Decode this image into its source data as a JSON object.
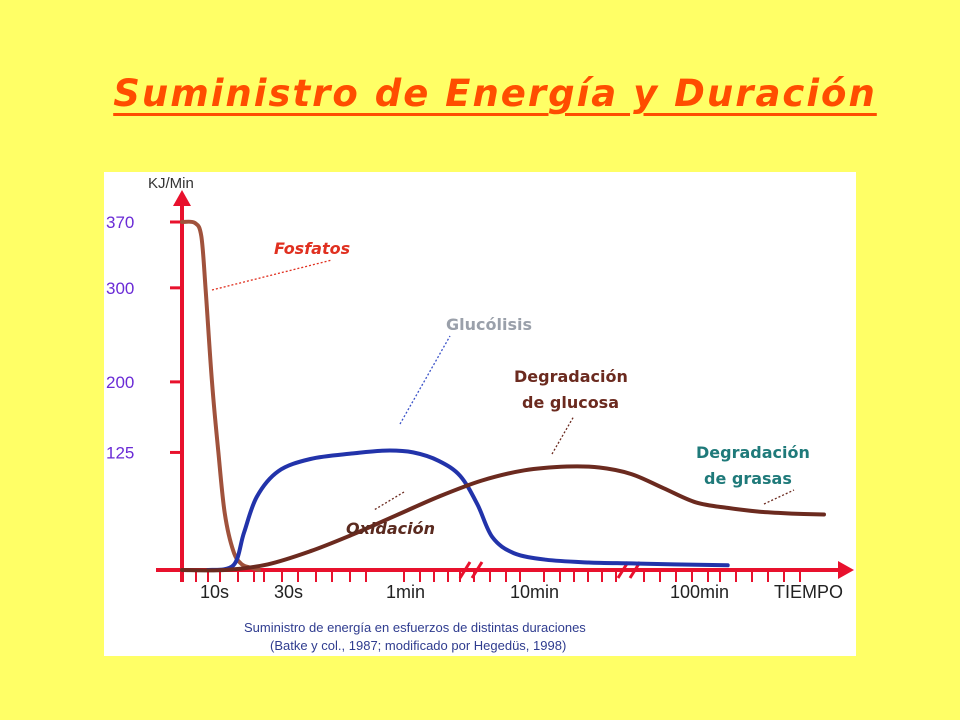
{
  "slide": {
    "title": "Suministro de Energía y Duración"
  },
  "chart_data": {
    "type": "line",
    "ylabel": "KJ/Min",
    "xlabel": "TIEMPO",
    "y_ticks": [
      125,
      200,
      300,
      370
    ],
    "ylim": [
      0,
      400
    ],
    "x_ticks": [
      "10s",
      "30s",
      "1min",
      "10min",
      "100min"
    ],
    "grid": false,
    "series": [
      {
        "name": "Fosfatos",
        "color": "#a0523c",
        "points": [
          [
            0,
            370
          ],
          [
            0.6,
            369
          ],
          [
            0.9,
            355
          ],
          [
            1.1,
            300
          ],
          [
            1.4,
            200
          ],
          [
            1.7,
            125
          ],
          [
            2.0,
            60
          ],
          [
            2.4,
            20
          ],
          [
            2.8,
            6
          ],
          [
            3.3,
            2
          ],
          [
            3.6,
            0
          ]
        ]
      },
      {
        "name": "Glucólisis",
        "color": "#2233aa",
        "points": [
          [
            1.2,
            0
          ],
          [
            2.4,
            5
          ],
          [
            2.9,
            40
          ],
          [
            3.5,
            78
          ],
          [
            4.5,
            105
          ],
          [
            6.0,
            118
          ],
          [
            8.0,
            124
          ],
          [
            9.5,
            127
          ],
          [
            10.8,
            125
          ],
          [
            12.0,
            116
          ],
          [
            13.0,
            100
          ],
          [
            13.8,
            70
          ],
          [
            14.5,
            35
          ],
          [
            15.5,
            18
          ],
          [
            17.0,
            11
          ],
          [
            19.0,
            8
          ],
          [
            21.0,
            7
          ],
          [
            23.0,
            6
          ],
          [
            25.5,
            5
          ]
        ]
      },
      {
        "name": "Oxidación",
        "color": "#6b2a1f",
        "points": [
          [
            0,
            0
          ],
          [
            2.0,
            0
          ],
          [
            4.0,
            6
          ],
          [
            6.0,
            20
          ],
          [
            8.0,
            38
          ],
          [
            10.0,
            58
          ],
          [
            12.0,
            78
          ],
          [
            14.0,
            95
          ],
          [
            16.0,
            106
          ],
          [
            18.0,
            110
          ],
          [
            19.5,
            109
          ],
          [
            21.0,
            102
          ],
          [
            22.5,
            87
          ],
          [
            24.0,
            72
          ],
          [
            25.5,
            66
          ],
          [
            27.0,
            62
          ],
          [
            28.5,
            60
          ],
          [
            30.0,
            59
          ]
        ]
      }
    ],
    "annotations": [
      {
        "text": "Fosfatos",
        "color": "#e03020"
      },
      {
        "text": "Glucólisis",
        "color": "#9aa0aa"
      },
      {
        "text": "Degradación de glucosa",
        "color": "#6b2a1f"
      },
      {
        "text": "Oxidación",
        "color": "#5a2a1f"
      },
      {
        "text": "Degradación de grasas",
        "color": "#1f7a7a"
      }
    ],
    "source": [
      "Suministro de energía en esfuerzos de distintas duraciones",
      "(Batke y col., 1987; modificado por Hegedüs, 1998)"
    ]
  }
}
